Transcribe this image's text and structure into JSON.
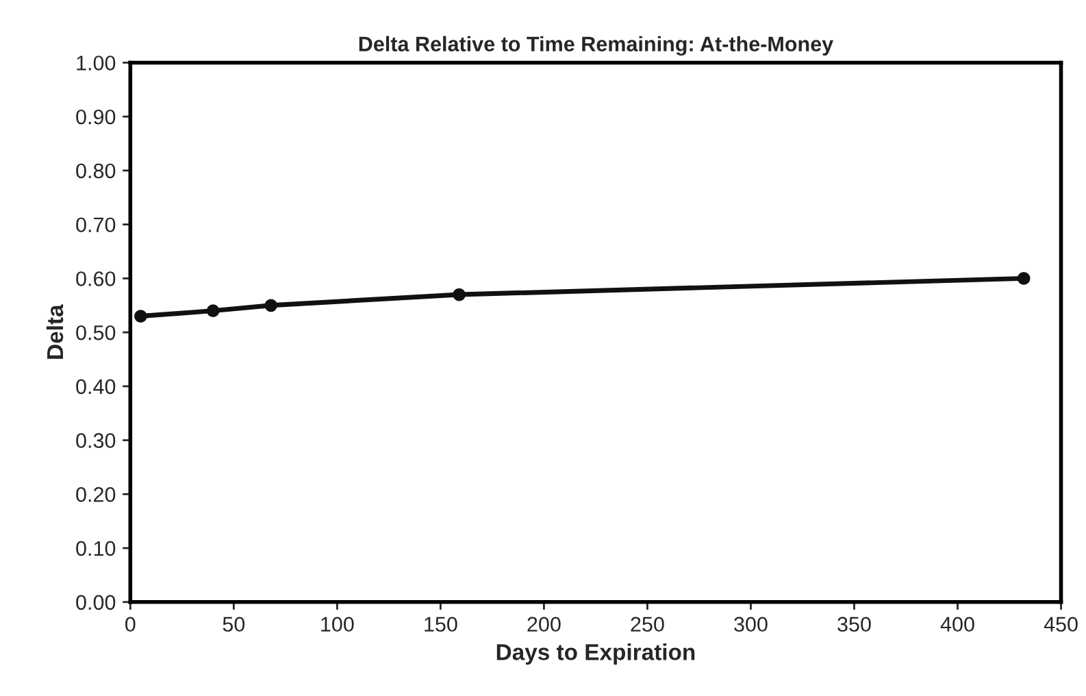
{
  "chart_data": {
    "type": "line",
    "title": "Delta Relative to Time Remaining: At-the-Money",
    "xlabel": "Days to Expiration",
    "ylabel": "Delta",
    "x": [
      5,
      40,
      68,
      159,
      432
    ],
    "series": [
      {
        "color": "#111111",
        "values": [
          0.53,
          0.54,
          0.55,
          0.57,
          0.6
        ]
      }
    ],
    "xlim": [
      0,
      450
    ],
    "xticks": [
      0,
      50,
      100,
      150,
      200,
      250,
      300,
      350,
      400,
      450
    ],
    "ylim": [
      0,
      1
    ],
    "yticks": [
      {
        "value": 0,
        "label": "0.00"
      },
      {
        "value": 0.1,
        "label": "0.10"
      },
      {
        "value": 0.2,
        "label": "0.20"
      },
      {
        "value": 0.3,
        "label": "0.30"
      },
      {
        "value": 0.4,
        "label": "0.40"
      },
      {
        "value": 0.5,
        "label": "0.50"
      },
      {
        "value": 0.6,
        "label": "0.60"
      },
      {
        "value": 0.7,
        "label": "0.70"
      },
      {
        "value": 0.8,
        "label": "0.80"
      },
      {
        "value": 0.9,
        "label": "0.90"
      },
      {
        "value": 1.0,
        "label": "1.00"
      }
    ],
    "grid": false,
    "legend": false,
    "marker": "circle",
    "line_style": "solid"
  }
}
